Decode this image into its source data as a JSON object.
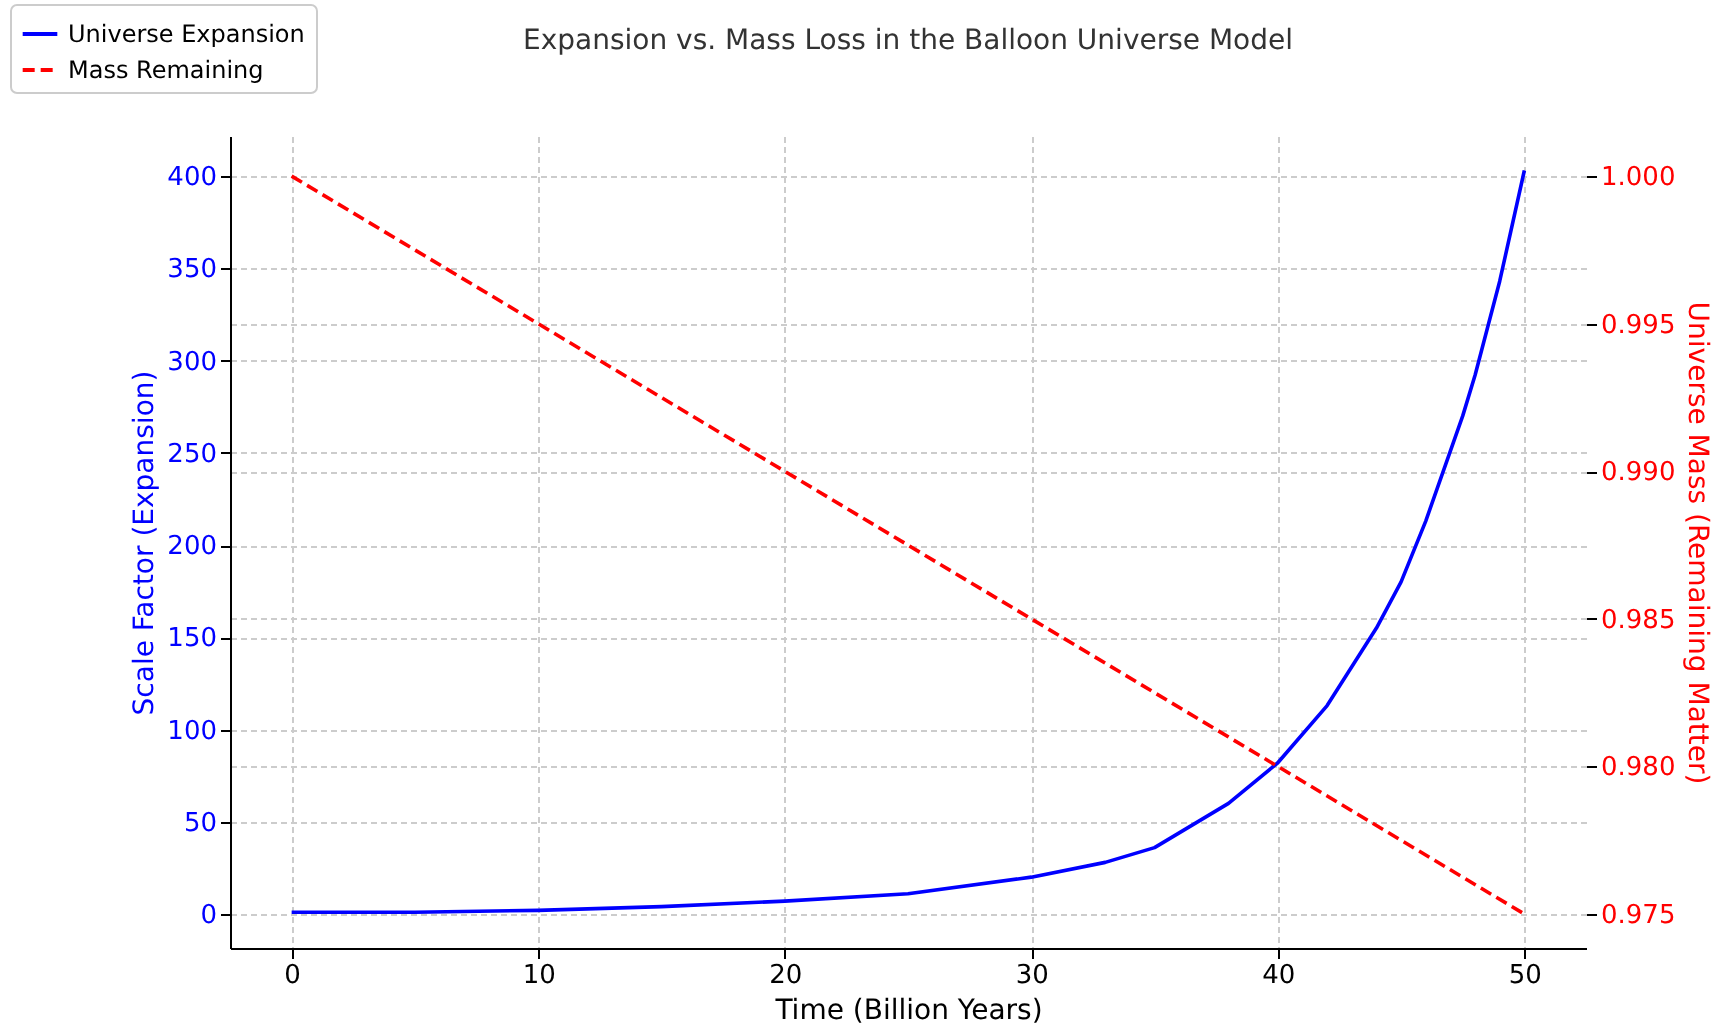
{
  "chart_data": {
    "type": "line",
    "title": "Expansion vs. Mass Loss in the Balloon Universe Model",
    "xlabel": "Time (Billion Years)",
    "ylabel": "Scale Factor (Expansion)",
    "y2label": "Universe Mass (Remaining Matter)",
    "xlim": [
      -2.5,
      52.5
    ],
    "xticks": [
      0,
      10,
      20,
      30,
      40,
      50
    ],
    "ylim": [
      -18.4,
      421.7
    ],
    "yticks": [
      0,
      50,
      100,
      150,
      200,
      250,
      300,
      350,
      400
    ],
    "y2lim": [
      0.97385,
      1.00136
    ],
    "y2ticks": [
      {
        "value": 0.975,
        "label": "0.975"
      },
      {
        "value": 0.98,
        "label": "0.980"
      },
      {
        "value": 0.985,
        "label": "0.985"
      },
      {
        "value": 0.99,
        "label": "0.990"
      },
      {
        "value": 0.995,
        "label": "0.995"
      },
      {
        "value": 1.0,
        "label": "1.000"
      }
    ],
    "grid": true,
    "legend": "top left",
    "series": [
      {
        "name": "Universe Expansion",
        "color": "#0000ff",
        "line_style": "solid",
        "x": [
          0,
          5,
          10,
          15,
          20,
          25,
          30,
          33,
          35,
          38,
          40,
          42,
          44,
          45,
          46,
          47.5,
          48,
          49,
          50
        ],
        "values": [
          1,
          1,
          2,
          4,
          7,
          11,
          20,
          28,
          36,
          60,
          82,
          113,
          155,
          180,
          213,
          270,
          292,
          343,
          403
        ]
      },
      {
        "name": "Mass Remaining",
        "color": "#ff0000",
        "line_style": "dashed",
        "axis": "y2",
        "x": [
          0,
          50
        ],
        "values": [
          1.0,
          0.975
        ]
      }
    ]
  }
}
